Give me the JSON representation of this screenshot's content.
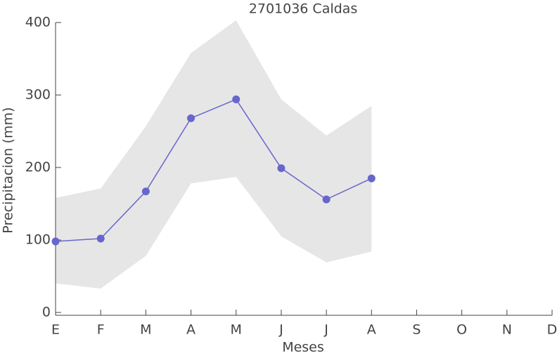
{
  "chart_data": {
    "type": "line",
    "title": "2701036 Caldas",
    "x_label": "Meses",
    "y_label": "Precipitacion (mm)",
    "categories": [
      "E",
      "F",
      "M",
      "A",
      "M",
      "J",
      "J",
      "A",
      "S",
      "O",
      "N",
      "D"
    ],
    "series": [
      {
        "color": "#6666cc",
        "values": [
          98,
          102,
          167,
          268,
          294,
          199,
          156,
          185,
          null,
          null,
          null,
          null
        ]
      }
    ],
    "band": {
      "color": "#e6e6e6",
      "upper": [
        158,
        171,
        257,
        358,
        403,
        294,
        244,
        285,
        null,
        null,
        null,
        null
      ],
      "lower": [
        40,
        33,
        78,
        178,
        187,
        105,
        69,
        84,
        null,
        null,
        null,
        null
      ]
    },
    "ylim": [
      0,
      400
    ],
    "yticks": [
      0,
      100,
      200,
      300,
      400
    ]
  }
}
